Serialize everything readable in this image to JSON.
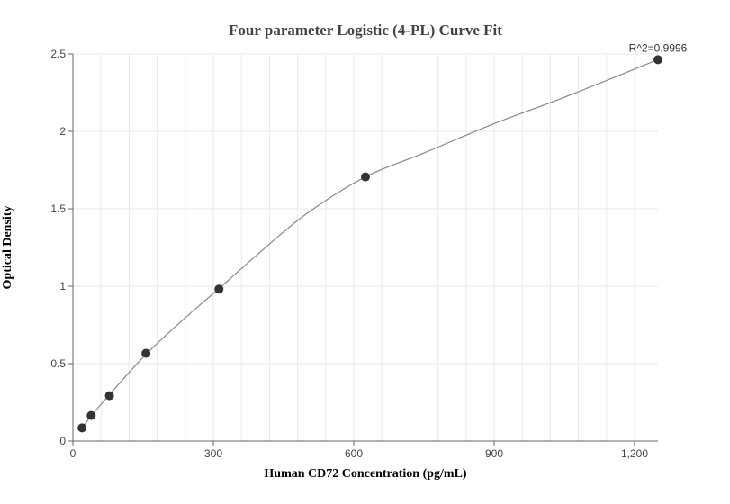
{
  "chart_data": {
    "type": "scatter",
    "title": "Four parameter Logistic (4-PL) Curve Fit",
    "xlabel": "Human CD72 Concentration (pg/mL)",
    "ylabel": "Optical Density",
    "xlim": [
      0,
      1250
    ],
    "ylim": [
      0,
      2.5
    ],
    "x_ticks": [
      0,
      300,
      600,
      900,
      1200
    ],
    "x_tick_labels": [
      "0",
      "300",
      "600",
      "900",
      "1,200"
    ],
    "y_ticks": [
      0,
      0.5,
      1,
      1.5,
      2,
      2.5
    ],
    "y_tick_labels": [
      "0",
      "0.5",
      "1",
      "1.5",
      "2",
      "2.5"
    ],
    "grid": true,
    "series": [
      {
        "type": "scatter",
        "x": [
          19.5,
          39,
          78,
          156,
          312,
          625,
          1250
        ],
        "y": [
          0.085,
          0.165,
          0.293,
          0.567,
          0.981,
          1.706,
          2.463
        ]
      },
      {
        "type": "line",
        "x": [
          19.5,
          39,
          78,
          156,
          234,
          312,
          400,
          500,
          625,
          750,
          900,
          1050,
          1250
        ],
        "y": [
          0.085,
          0.162,
          0.3,
          0.56,
          0.78,
          0.985,
          1.22,
          1.47,
          1.706,
          1.86,
          2.05,
          2.22,
          2.463
        ]
      }
    ],
    "annotation": "R^2=0.9996",
    "colors": {
      "points": "#333333",
      "curve": "#888888",
      "grid": "#e8e8f0",
      "axis": "#666666"
    }
  }
}
